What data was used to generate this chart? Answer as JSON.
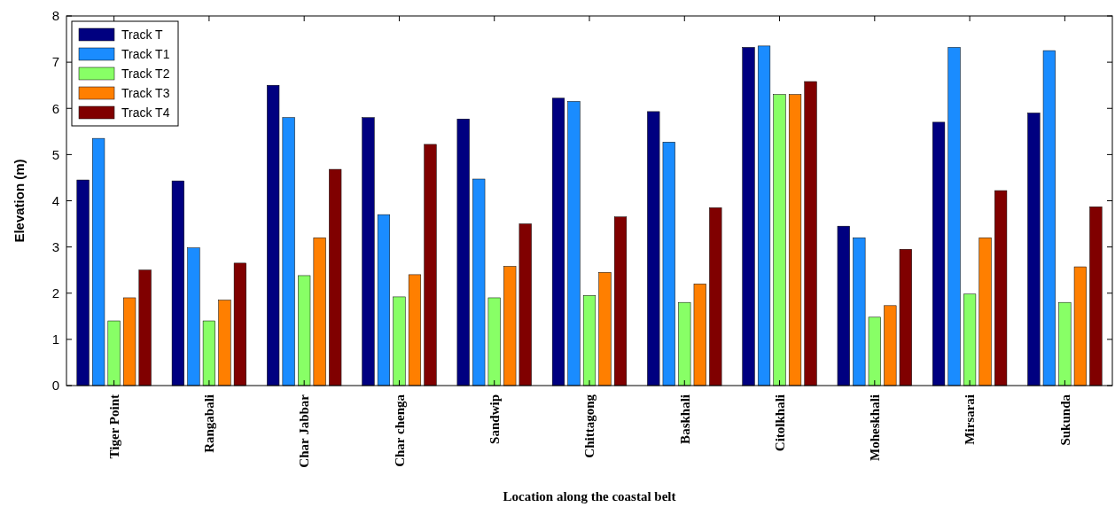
{
  "chart_data": {
    "type": "bar",
    "xlabel": "Location along the coastal belt",
    "ylabel": "Elevation (m)",
    "categories": [
      "Tiger Point",
      "Rangabali",
      "Char Jabbar",
      "Char chenga",
      "Sandwip",
      "Chittagong",
      "Baskhali",
      "Citolkhali",
      "Moheskhali",
      "Mirsarai",
      "Sukunda"
    ],
    "series": [
      {
        "name": "Track T",
        "color": "#000080",
        "values": [
          4.45,
          4.43,
          6.5,
          5.8,
          5.77,
          6.22,
          5.93,
          7.32,
          3.45,
          5.7,
          5.9
        ]
      },
      {
        "name": "Track T1",
        "color": "#1a8cff",
        "values": [
          5.35,
          2.98,
          5.8,
          3.7,
          4.47,
          6.15,
          5.27,
          7.35,
          3.2,
          7.32,
          7.25
        ]
      },
      {
        "name": "Track T2",
        "color": "#88ff66",
        "values": [
          1.4,
          1.4,
          2.38,
          1.92,
          1.9,
          1.95,
          1.8,
          6.3,
          1.48,
          1.98,
          1.8
        ]
      },
      {
        "name": "Track T3",
        "color": "#ff7f00",
        "values": [
          1.9,
          1.85,
          3.2,
          2.4,
          2.58,
          2.45,
          2.2,
          6.3,
          1.73,
          3.2,
          2.57
        ]
      },
      {
        "name": "Track T4",
        "color": "#800000",
        "values": [
          2.5,
          2.65,
          4.68,
          5.22,
          3.5,
          3.65,
          3.85,
          6.58,
          2.95,
          4.22,
          3.87
        ]
      }
    ],
    "ylim": [
      0,
      8
    ],
    "yticks": [
      0,
      1,
      2,
      3,
      4,
      5,
      6,
      7,
      8
    ],
    "legend": "top left",
    "grid": false
  }
}
